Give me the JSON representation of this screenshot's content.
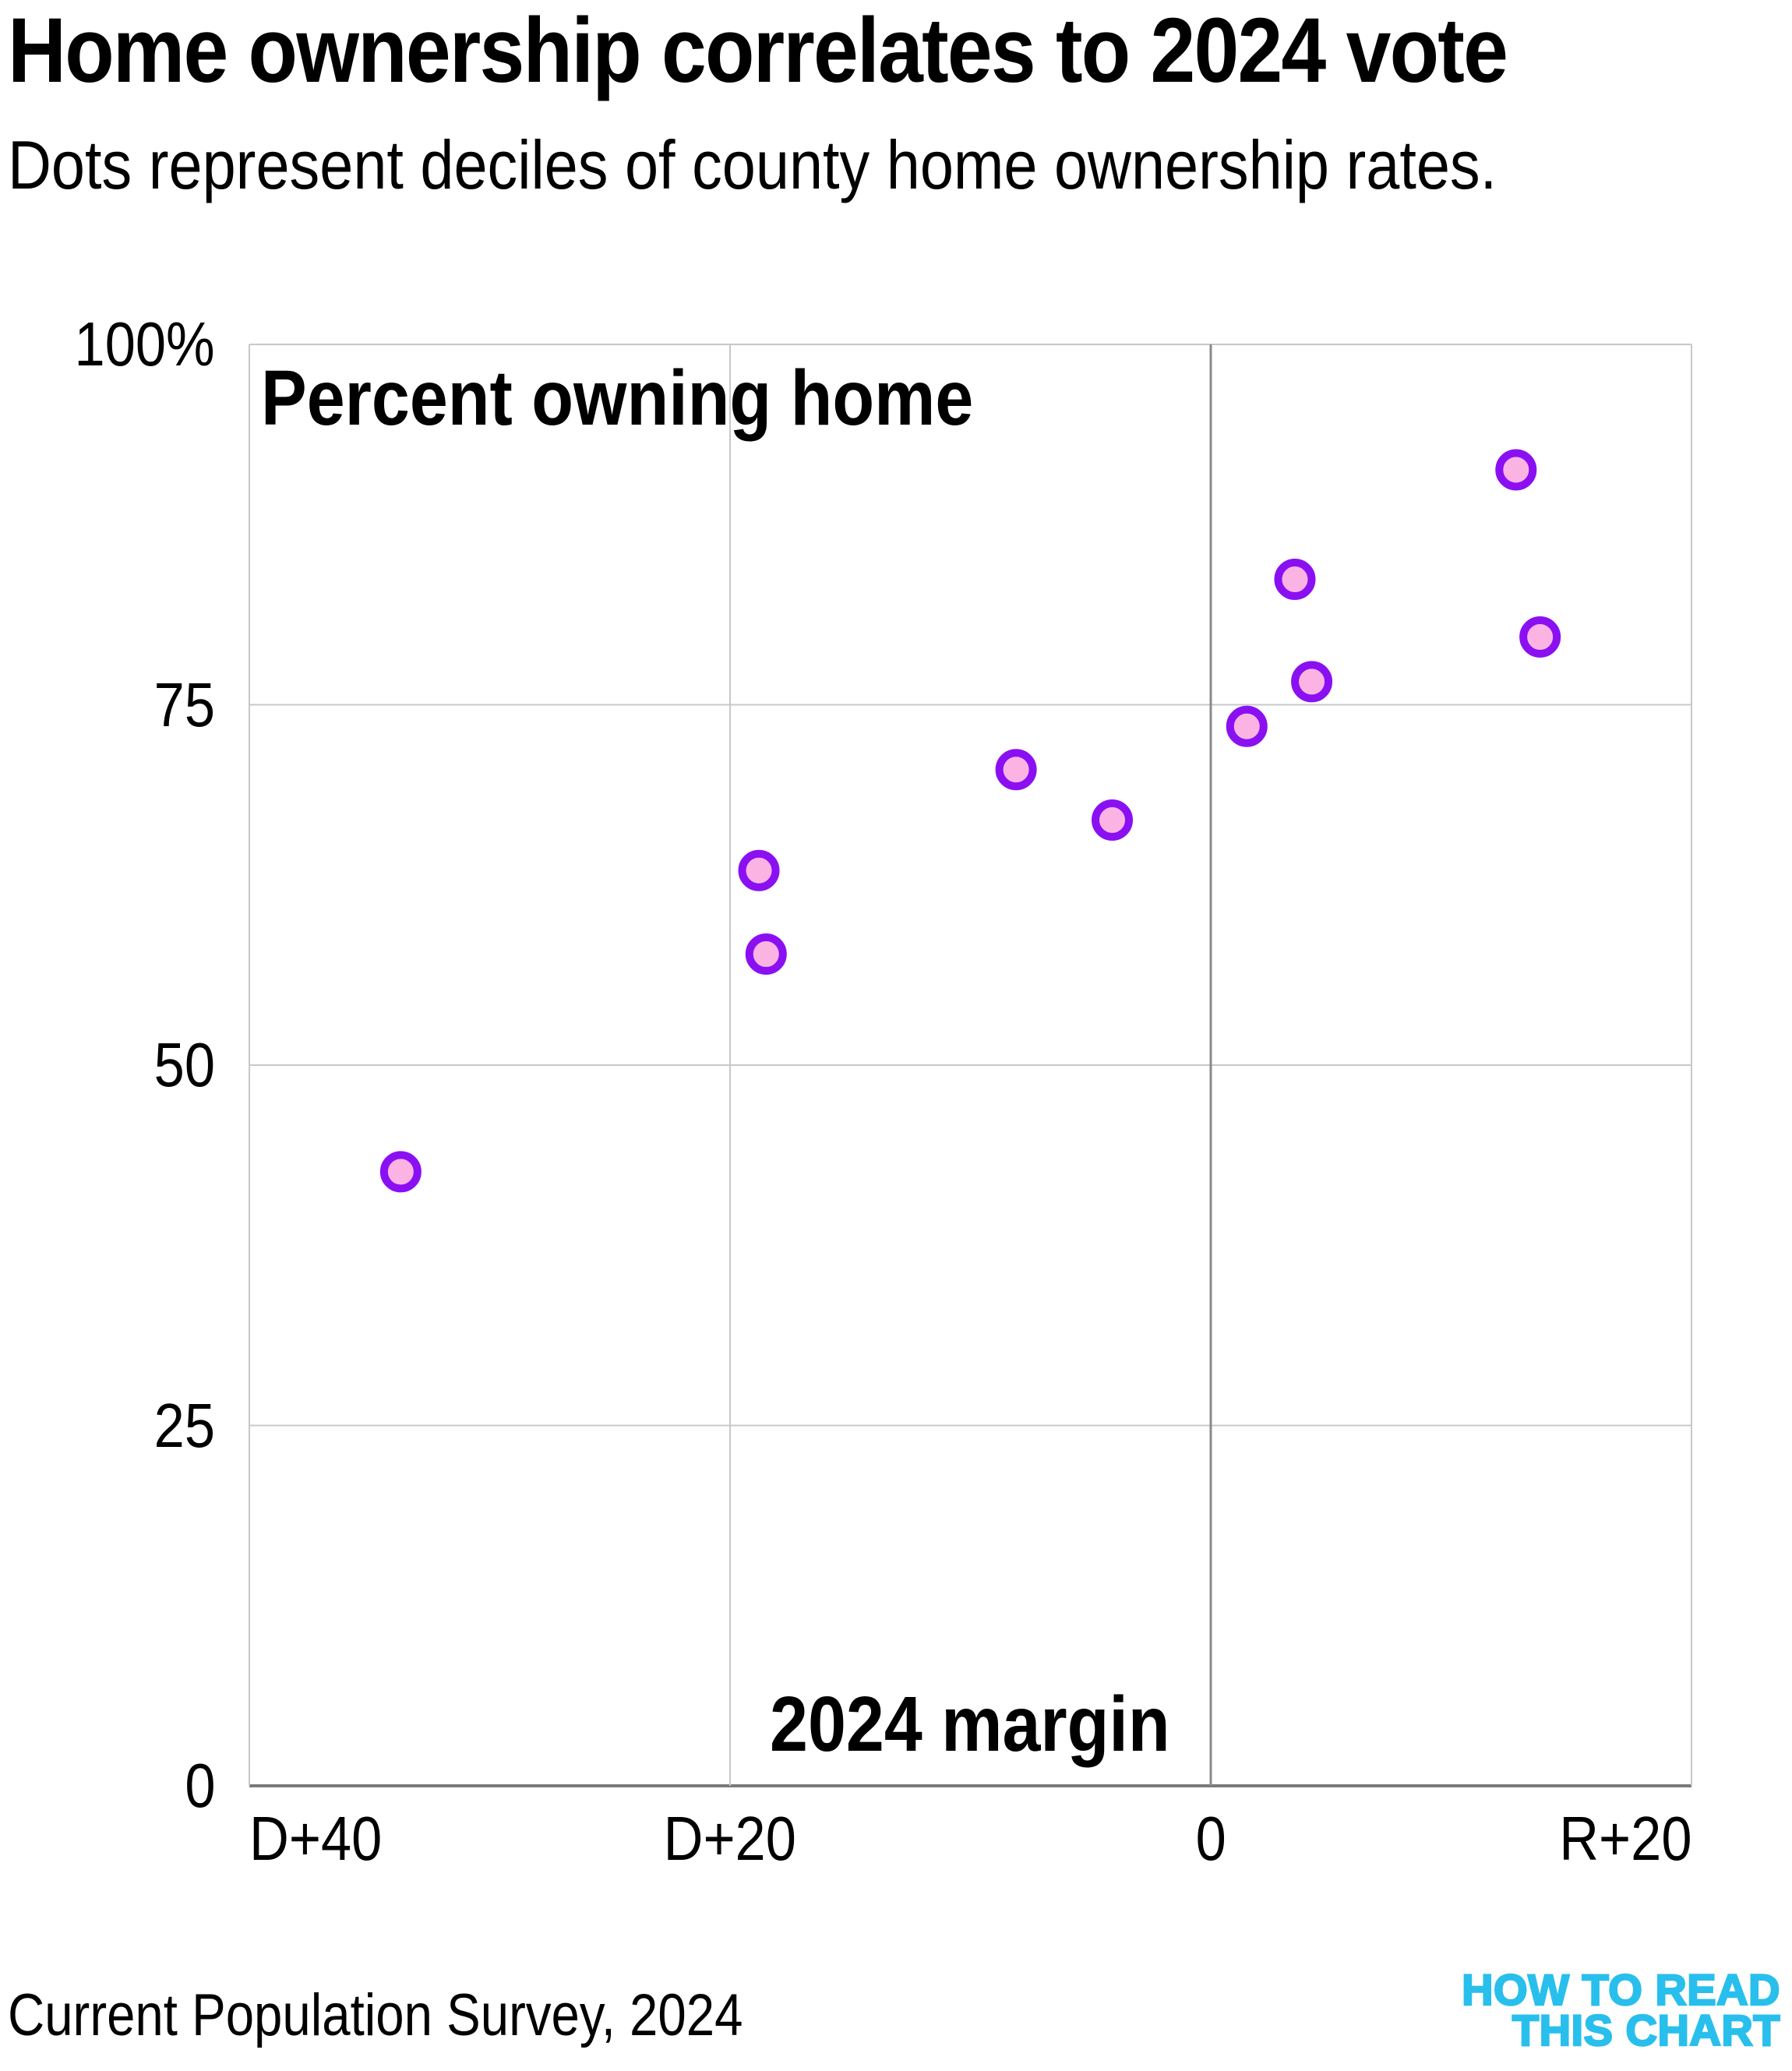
{
  "header": {
    "title": "Home ownership correlates to 2024 vote",
    "subtitle": "Dots represent deciles of county home ownership rates."
  },
  "footer": {
    "source": "Current Population Survey, 2024",
    "logo_line1": "HOW TO READ",
    "logo_line2": "THIS CHART",
    "logo_color": "#29BFEC"
  },
  "chart_data": {
    "type": "scatter",
    "title": "Home ownership correlates to 2024 vote",
    "subtitle": "Dots represent deciles of county home ownership rates.",
    "x_axis_label": "2024 margin",
    "y_axis_label": "Percent owning home",
    "xlim": [
      -40,
      20
    ],
    "ylim": [
      0,
      100
    ],
    "grid": true,
    "xticks": [
      {
        "value": -40,
        "label": "D+40"
      },
      {
        "value": -20,
        "label": "D+20"
      },
      {
        "value": 0,
        "label": "0"
      },
      {
        "value": 20,
        "label": "R+20"
      }
    ],
    "yticks": [
      {
        "value": 100,
        "label": "100%"
      },
      {
        "value": 75,
        "label": "75"
      },
      {
        "value": 50,
        "label": "50"
      },
      {
        "value": 25,
        "label": "25"
      },
      {
        "value": 0,
        "label": "0"
      }
    ],
    "points_note": "x = 2024 presidential margin (negative = Democratic, positive = Republican), y = percent owning home; one dot per decile of county home ownership rates",
    "points": [
      {
        "margin": -33.7,
        "pct": 42.6
      },
      {
        "margin": -18.5,
        "pct": 57.7
      },
      {
        "margin": -18.8,
        "pct": 63.5
      },
      {
        "margin": -4.1,
        "pct": 67.0
      },
      {
        "margin": -8.1,
        "pct": 70.5
      },
      {
        "margin": 1.5,
        "pct": 73.5
      },
      {
        "margin": 4.2,
        "pct": 76.6
      },
      {
        "margin": 13.7,
        "pct": 79.7
      },
      {
        "margin": 3.5,
        "pct": 83.7
      },
      {
        "margin": 12.7,
        "pct": 91.3
      }
    ],
    "point_style": {
      "fill": "#FBB3E3",
      "stroke": "#8A10F2",
      "radius": 21.5,
      "stroke_width": 10
    },
    "grid_style": {
      "color": "#C8C8C8",
      "zero_x_color": "#8A8A8A",
      "axis_color": "#7A7A7A"
    }
  }
}
